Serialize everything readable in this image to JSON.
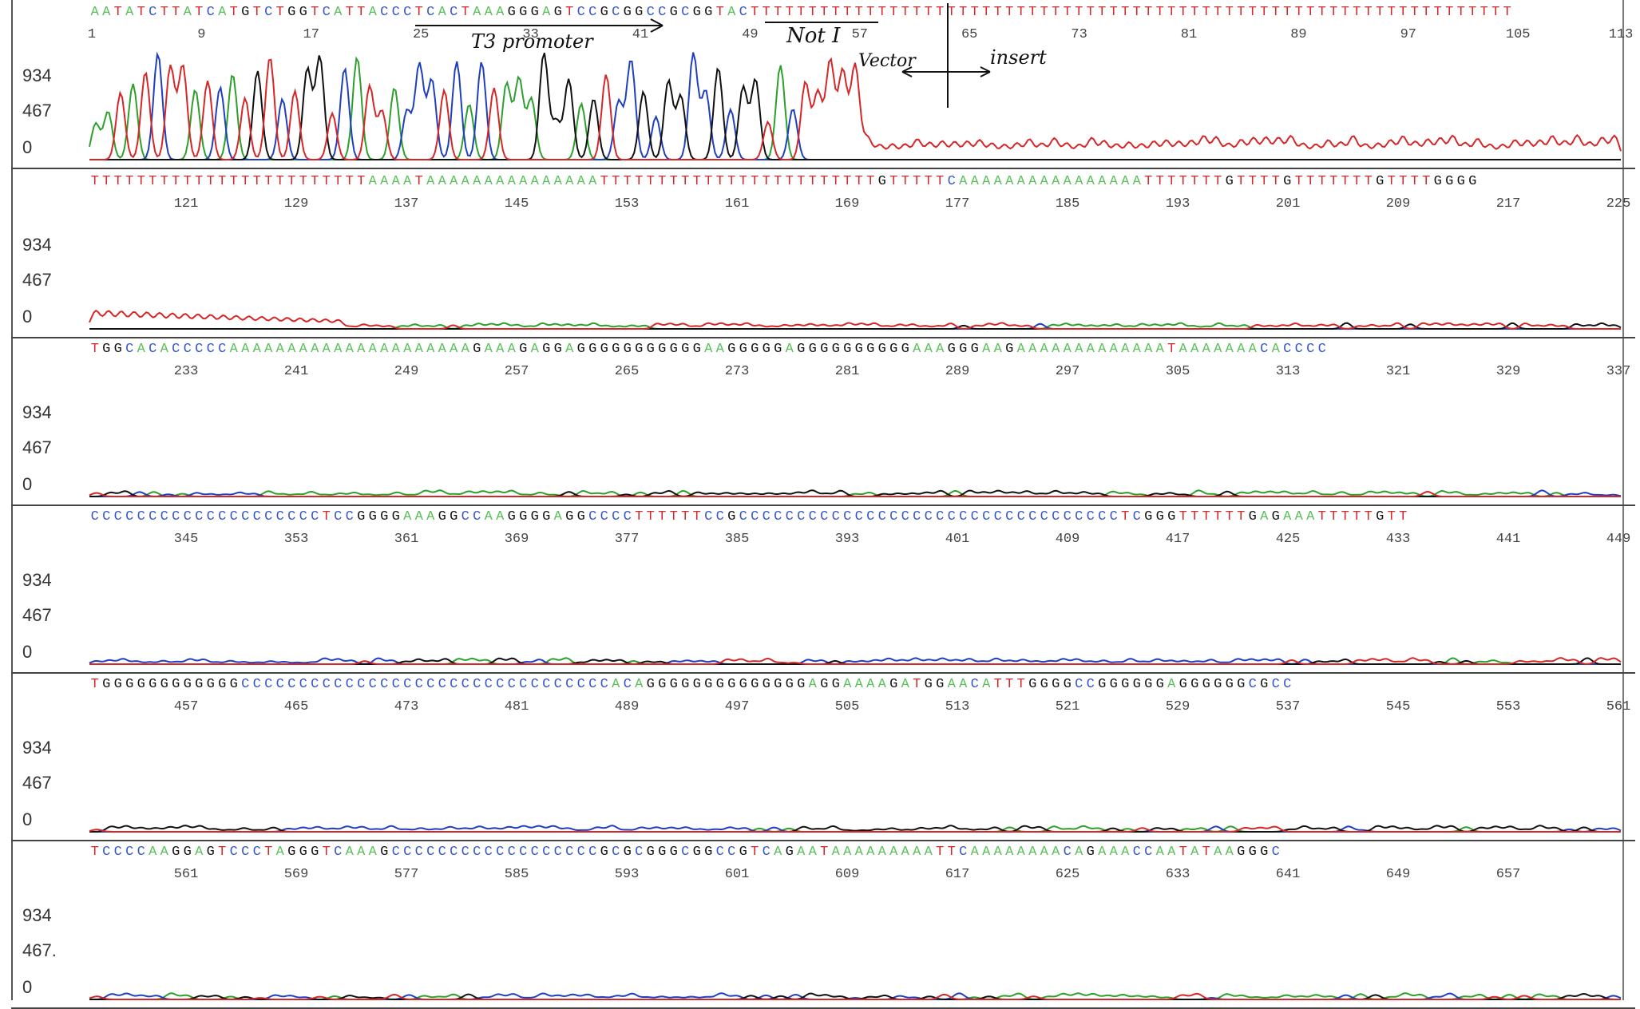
{
  "chart_data": {
    "type": "line",
    "title": "",
    "xlabel": "",
    "ylabel": "",
    "ylim": [
      0,
      1000
    ],
    "y_ticks": [
      "934",
      "467",
      "0"
    ],
    "y_ticks_last": [
      "934",
      "467.",
      "0"
    ],
    "series": [
      {
        "name": "",
        "color": "#2ca02c"
      },
      {
        "name": "",
        "color": "#1f3fbf"
      },
      {
        "name": "",
        "color": "#111111"
      },
      {
        "name": "",
        "color": "#d62728"
      }
    ],
    "panels": [
      {
        "sequence": "AATATCTTATCATGTCTGGTCATTACCCTCACTAAAGGGAGTCCGCGGCCGCGGTACTTTTTTTTTTTTTTTTTTTTTTTTTTTTTTTTTTTTTTTTTTTTTTTTTTTTTTTTTTTTTTTTTT",
        "positions": [
          1,
          9,
          17,
          25,
          33,
          41,
          49,
          57,
          65,
          73,
          81,
          89,
          97,
          105,
          113
        ]
      },
      {
        "sequence": "TTTTTTTTTTTTTTTTTTTTTTTTAAAATAAAAAAAAAAAAAAATTTTTTTTTTTTTTTTTTTTTTTTGTTTTTCAAAAAAAAAAAAAAAATTTTTTTGTTTTGTTTTTTTGTTTTGGGG",
        "positions": [
          121,
          129,
          137,
          145,
          153,
          161,
          169,
          177,
          185,
          193,
          201,
          209,
          217,
          225
        ]
      },
      {
        "sequence": "TGGCACACCCCCAAAAAAAAAAAAAAAAAAAAAGAAAGAGGAGGGGGGGGGGGAAGGGGGAGGGGGGGGGGAAAGGGAAGAAAAAAAAAAAAATAAAAAAACACCCC",
        "positions": [
          233,
          241,
          249,
          257,
          265,
          273,
          281,
          289,
          297,
          305,
          313,
          321,
          329,
          337
        ]
      },
      {
        "sequence": "CCCCCCCCCCCCCCCCCCCCTCCGGGGAAAGGCCAAGGGGAGGCCCCTTTTTTCCGCCCCCCCCCCCCCCCCCCCCCCCCCCCCCCCCCTCGGGTTTTTTGAGAAATTTTTGTT",
        "positions": [
          345,
          353,
          361,
          369,
          377,
          385,
          393,
          401,
          409,
          417,
          425,
          433,
          441,
          449
        ]
      },
      {
        "sequence": "TGGGGGGGGGGGGCCCCCCCCCCCCCCCCCCCCCCCCCCCCCCCCACAGGGGGGGGGGGGGGAGGAAAAGATGGAACATTTGGGGCCGGGGGGAGGGGGGCGCC",
        "positions": [
          457,
          465,
          473,
          481,
          489,
          497,
          505,
          513,
          521,
          529,
          537,
          545,
          553,
          561
        ]
      },
      {
        "sequence": "TCCCCAAGGAGTCCCTAGGGTCAAAGCCCCCCCCCCCCCCCCCCGCGCGGGCGGCCGTCAGAATAAAAAAAAATTCAAAAAAAACAGAAACCAATATAAGGGC",
        "positions": [
          561,
          569,
          577,
          585,
          593,
          601,
          609,
          617,
          625,
          633,
          641,
          649,
          657
        ]
      }
    ],
    "annotations": {
      "promoter": "T3 promoter",
      "site": "Not I",
      "left_arrow": "Vector",
      "right_arrow": "insert"
    }
  }
}
